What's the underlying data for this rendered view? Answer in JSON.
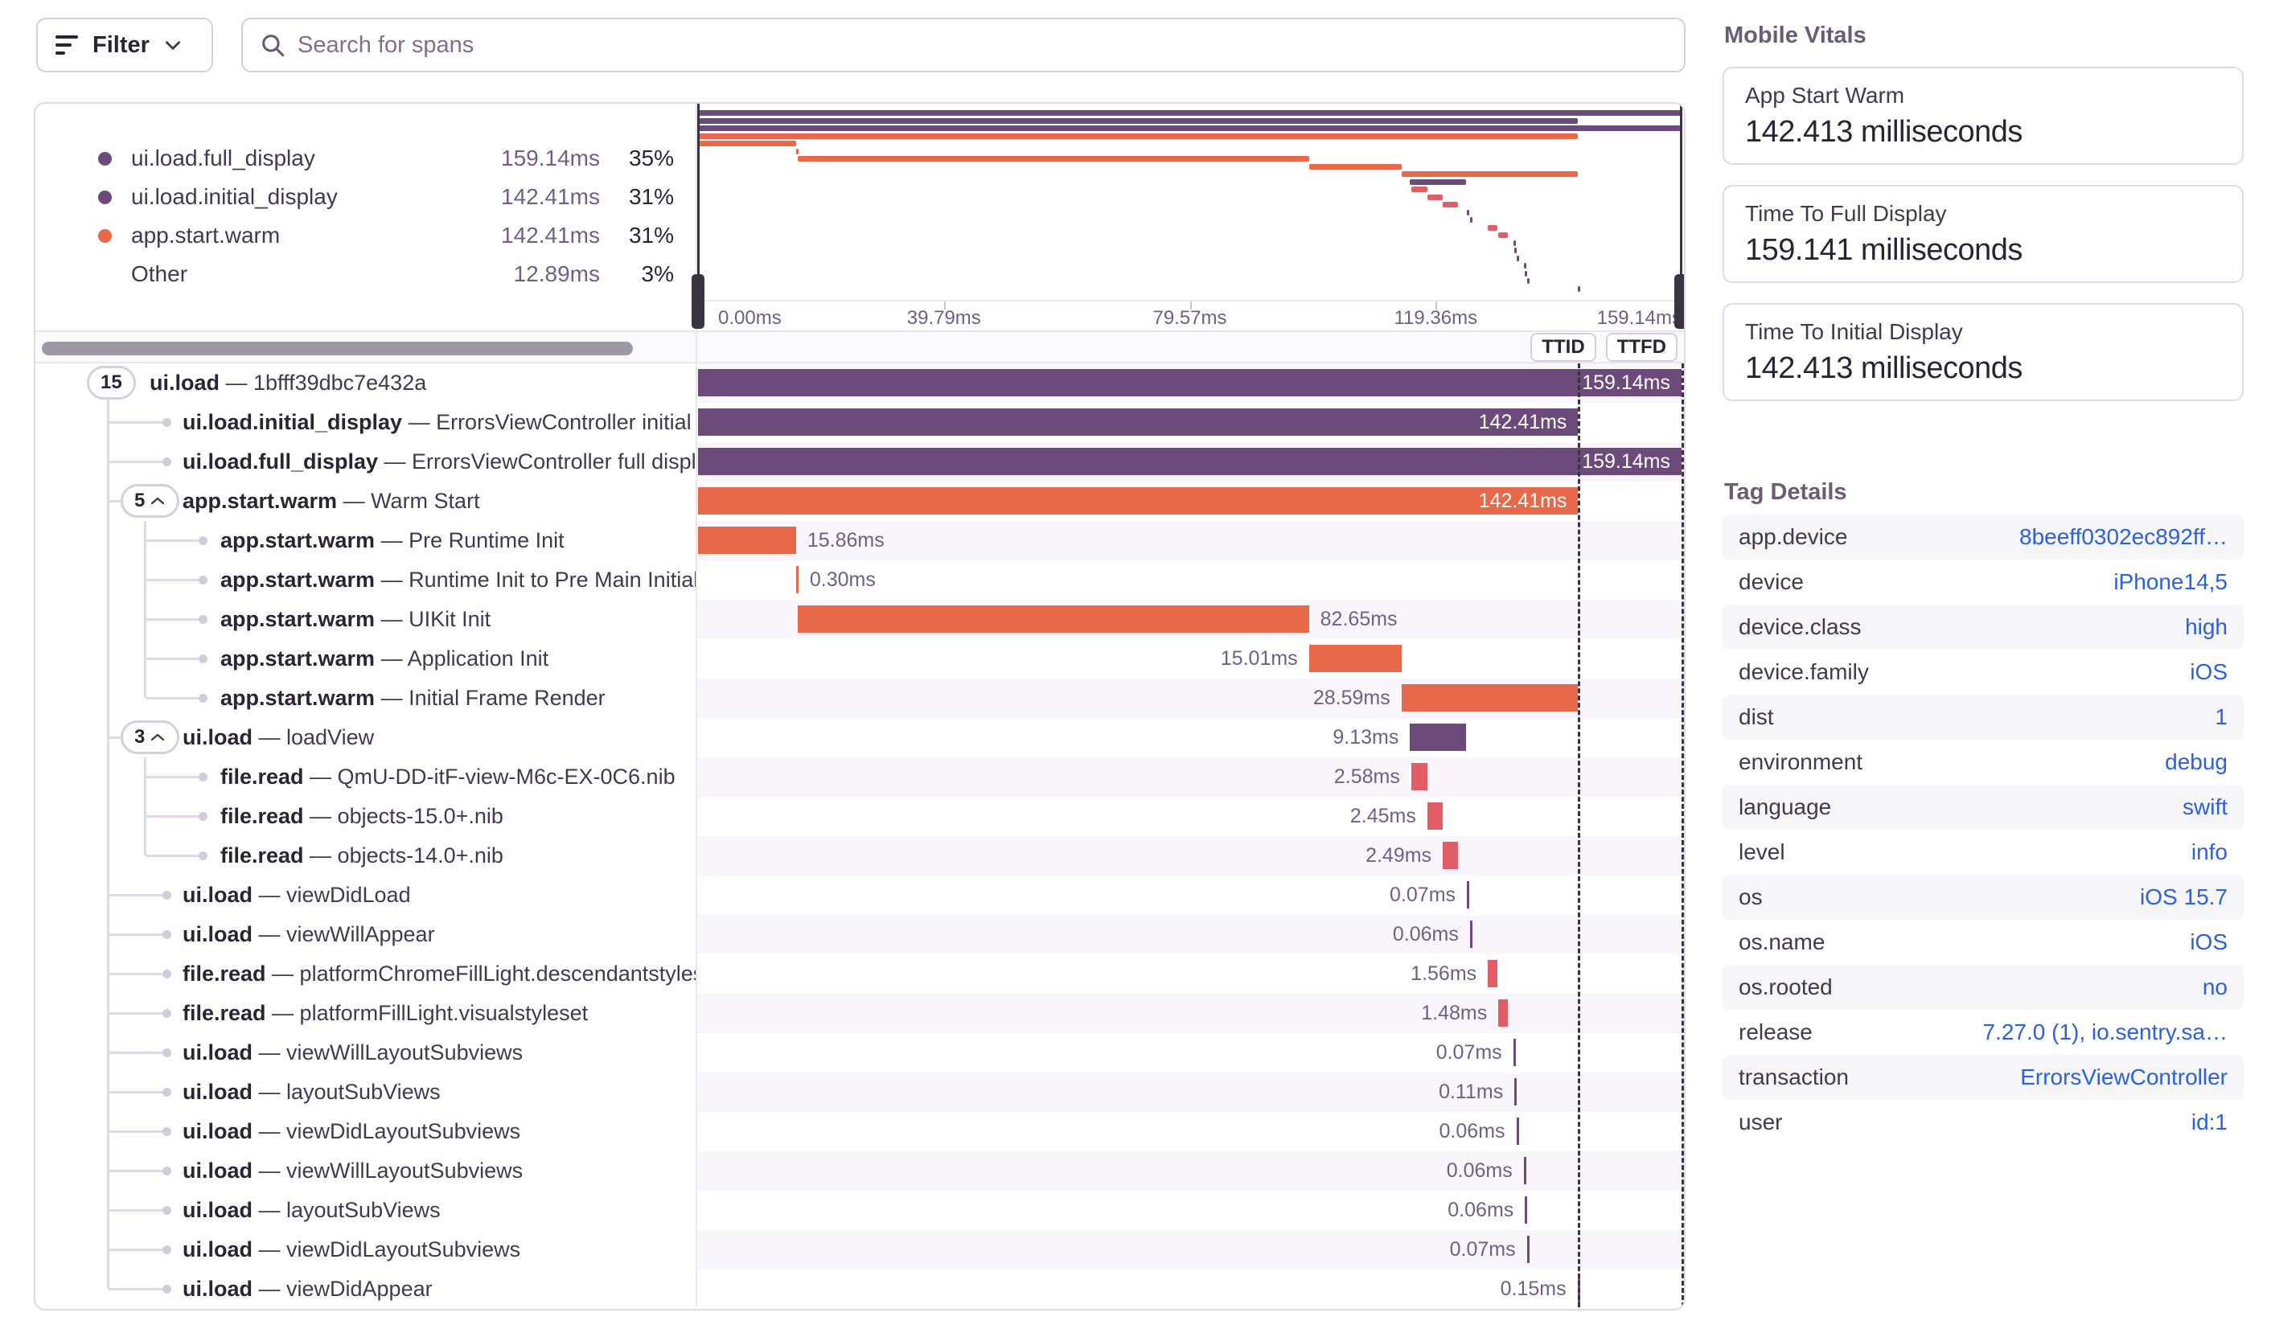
{
  "meta": {
    "sep": " — "
  },
  "toolbar": {
    "filter_label": "Filter",
    "search_placeholder": "Search for spans"
  },
  "legend": {
    "items": [
      {
        "name": "ui.load.full_display",
        "duration": "159.14ms",
        "pct": "35%",
        "color": "#6C4B7B"
      },
      {
        "name": "ui.load.initial_display",
        "duration": "142.41ms",
        "pct": "31%",
        "color": "#6C4B7B"
      },
      {
        "name": "app.start.warm",
        "duration": "142.41ms",
        "pct": "31%",
        "color": "#E8694A"
      },
      {
        "name": "Other",
        "duration": "12.89ms",
        "pct": "3%",
        "color": ""
      }
    ]
  },
  "minimap": {
    "axis": [
      {
        "label": "0.00ms",
        "t": 0,
        "align": "left"
      },
      {
        "label": "39.79ms",
        "t": 39.79,
        "align": "center"
      },
      {
        "label": "79.57ms",
        "t": 79.57,
        "align": "center"
      },
      {
        "label": "119.36ms",
        "t": 119.36,
        "align": "center"
      },
      {
        "label": "159.14ms",
        "t": 159.14,
        "align": "right"
      }
    ]
  },
  "controls": {
    "ttid": "TTID",
    "ttfd": "TTFD"
  },
  "timeline": {
    "total": 159.14,
    "ttid_ms": 142.41,
    "ttfd_ms": 159.14
  },
  "spans": [
    {
      "op": "ui.load",
      "desc": "1bfff39dbc7e432a",
      "duration": "159.14ms",
      "t0": 0,
      "t1": 159.14,
      "kind": "purple",
      "label": "in",
      "depth": 0,
      "badge": "15",
      "chevron": false
    },
    {
      "op": "ui.load.initial_display",
      "desc": "ErrorsViewController initial display",
      "duration": "142.41ms",
      "t0": 0,
      "t1": 142.41,
      "kind": "purple",
      "label": "in",
      "depth": 1
    },
    {
      "op": "ui.load.full_display",
      "desc": "ErrorsViewController full display",
      "duration": "159.14ms",
      "t0": 0,
      "t1": 159.14,
      "kind": "purple",
      "label": "in",
      "depth": 1
    },
    {
      "op": "app.start.warm",
      "desc": "Warm Start",
      "duration": "142.41ms",
      "t0": 0,
      "t1": 142.41,
      "kind": "orange",
      "label": "in",
      "depth": 1,
      "badge": "5",
      "chevron": true
    },
    {
      "op": "app.start.warm",
      "desc": "Pre Runtime Init",
      "duration": "15.86ms",
      "t0": 0,
      "t1": 15.86,
      "kind": "orange",
      "label": "right",
      "depth": 2
    },
    {
      "op": "app.start.warm",
      "desc": "Runtime Init to Pre Main Initializers",
      "duration": "0.30ms",
      "t0": 15.86,
      "t1": 16.16,
      "kind": "orange",
      "label": "right",
      "depth": 2
    },
    {
      "op": "app.start.warm",
      "desc": "UIKit Init",
      "duration": "82.65ms",
      "t0": 16.2,
      "t1": 98.85,
      "kind": "orange",
      "label": "right",
      "depth": 2
    },
    {
      "op": "app.start.warm",
      "desc": "Application Init",
      "duration": "15.01ms",
      "t0": 98.85,
      "t1": 113.86,
      "kind": "orange",
      "label": "left",
      "depth": 2
    },
    {
      "op": "app.start.warm",
      "desc": "Initial Frame Render",
      "duration": "28.59ms",
      "t0": 113.82,
      "t1": 142.41,
      "kind": "orange",
      "label": "left",
      "depth": 2
    },
    {
      "op": "ui.load",
      "desc": "loadView",
      "duration": "9.13ms",
      "t0": 115.2,
      "t1": 124.33,
      "kind": "purple",
      "label": "left",
      "depth": 1,
      "badge": "3",
      "chevron": true
    },
    {
      "op": "file.read",
      "desc": "QmU-DD-itF-view-M6c-EX-0C6.nib",
      "duration": "2.58ms",
      "t0": 115.4,
      "t1": 117.98,
      "kind": "red",
      "label": "left",
      "depth": 2
    },
    {
      "op": "file.read",
      "desc": "objects-15.0+.nib",
      "duration": "2.45ms",
      "t0": 118.0,
      "t1": 120.45,
      "kind": "red",
      "label": "left",
      "depth": 2
    },
    {
      "op": "file.read",
      "desc": "objects-14.0+.nib",
      "duration": "2.49ms",
      "t0": 120.5,
      "t1": 122.99,
      "kind": "red",
      "label": "left",
      "depth": 2
    },
    {
      "op": "ui.load",
      "desc": "viewDidLoad",
      "duration": "0.07ms",
      "t0": 124.4,
      "t1": 124.47,
      "kind": "purple",
      "label": "left",
      "depth": 1
    },
    {
      "op": "ui.load",
      "desc": "viewWillAppear",
      "duration": "0.06ms",
      "t0": 124.9,
      "t1": 124.96,
      "kind": "purple",
      "label": "left",
      "depth": 1
    },
    {
      "op": "file.read",
      "desc": "platformChromeFillLight.descendantstyleset",
      "duration": "1.56ms",
      "t0": 127.8,
      "t1": 129.36,
      "kind": "red",
      "label": "left",
      "depth": 1
    },
    {
      "op": "file.read",
      "desc": "platformFillLight.visualstyleset",
      "duration": "1.48ms",
      "t0": 129.5,
      "t1": 130.98,
      "kind": "red",
      "label": "left",
      "depth": 1
    },
    {
      "op": "ui.load",
      "desc": "viewWillLayoutSubviews",
      "duration": "0.07ms",
      "t0": 131.9,
      "t1": 131.97,
      "kind": "purple",
      "label": "left",
      "depth": 1
    },
    {
      "op": "ui.load",
      "desc": "layoutSubViews",
      "duration": "0.11ms",
      "t0": 132.1,
      "t1": 132.21,
      "kind": "purple",
      "label": "left",
      "depth": 1
    },
    {
      "op": "ui.load",
      "desc": "viewDidLayoutSubviews",
      "duration": "0.06ms",
      "t0": 132.4,
      "t1": 132.46,
      "kind": "purple",
      "label": "left",
      "depth": 1
    },
    {
      "op": "ui.load",
      "desc": "viewWillLayoutSubviews",
      "duration": "0.06ms",
      "t0": 133.6,
      "t1": 133.66,
      "kind": "purple",
      "label": "left",
      "depth": 1
    },
    {
      "op": "ui.load",
      "desc": "layoutSubViews",
      "duration": "0.06ms",
      "t0": 133.8,
      "t1": 133.86,
      "kind": "purple",
      "label": "left",
      "depth": 1
    },
    {
      "op": "ui.load",
      "desc": "viewDidLayoutSubviews",
      "duration": "0.07ms",
      "t0": 134.1,
      "t1": 134.17,
      "kind": "purple",
      "label": "left",
      "depth": 1
    },
    {
      "op": "ui.load",
      "desc": "viewDidAppear",
      "duration": "0.15ms",
      "t0": 142.3,
      "t1": 142.45,
      "kind": "purple",
      "label": "left",
      "depth": 1
    }
  ],
  "vitals": {
    "title": "Mobile Vitals",
    "cards": [
      {
        "label": "App Start Warm",
        "value": "142.413 milliseconds"
      },
      {
        "label": "Time To Full Display",
        "value": "159.141 milliseconds"
      },
      {
        "label": "Time To Initial Display",
        "value": "142.413 milliseconds"
      }
    ]
  },
  "tags": {
    "title": "Tag Details",
    "rows": [
      {
        "key": "app.device",
        "value": "8beeff0302ec892ff…"
      },
      {
        "key": "device",
        "value": "iPhone14,5"
      },
      {
        "key": "device.class",
        "value": "high"
      },
      {
        "key": "device.family",
        "value": "iOS"
      },
      {
        "key": "dist",
        "value": "1"
      },
      {
        "key": "environment",
        "value": "debug"
      },
      {
        "key": "language",
        "value": "swift"
      },
      {
        "key": "level",
        "value": "info"
      },
      {
        "key": "os",
        "value": "iOS 15.7"
      },
      {
        "key": "os.name",
        "value": "iOS"
      },
      {
        "key": "os.rooted",
        "value": "no"
      },
      {
        "key": "release",
        "value": "7.27.0 (1), io.sentry.sa…"
      },
      {
        "key": "transaction",
        "value": "ErrorsViewController"
      },
      {
        "key": "user",
        "value": "id:1"
      }
    ]
  },
  "colors": {
    "purple": "#6C4B7B",
    "orange": "#E8694A",
    "red": "#E25E66",
    "link": "#2B61DE"
  }
}
